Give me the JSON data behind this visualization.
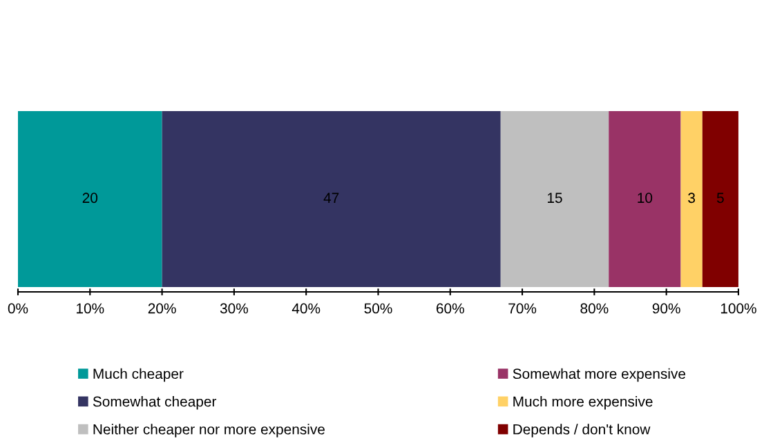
{
  "chart_data": {
    "type": "bar",
    "orientation": "horizontal",
    "stacked": true,
    "categories": [
      null
    ],
    "series": [
      {
        "name": "Much cheaper",
        "color": "#009999",
        "values": [
          20
        ]
      },
      {
        "name": "Somewhat cheaper",
        "color": "#343462",
        "values": [
          47
        ]
      },
      {
        "name": "Neither cheaper nor more expensive",
        "color": "#bfbfbf",
        "values": [
          15
        ]
      },
      {
        "name": "Somewhat more expensive",
        "color": "#993366",
        "values": [
          10
        ]
      },
      {
        "name": "Much more expensive",
        "color": "#ffd166",
        "values": [
          3
        ]
      },
      {
        "name": "Depends / don't know",
        "color": "#800000",
        "values": [
          5
        ]
      }
    ],
    "xlim": [
      0,
      100
    ],
    "xticks": [
      {
        "value": 0,
        "label": "0%"
      },
      {
        "value": 10,
        "label": "10%"
      },
      {
        "value": 20,
        "label": "20%"
      },
      {
        "value": 30,
        "label": "30%"
      },
      {
        "value": 40,
        "label": "40%"
      },
      {
        "value": 50,
        "label": "50%"
      },
      {
        "value": 60,
        "label": "60%"
      },
      {
        "value": 70,
        "label": "70%"
      },
      {
        "value": 80,
        "label": "80%"
      },
      {
        "value": 90,
        "label": "90%"
      },
      {
        "value": 100,
        "label": "100%"
      }
    ],
    "data_labels": true,
    "grid": false,
    "legend": "bottom",
    "tick_labels": "x"
  }
}
